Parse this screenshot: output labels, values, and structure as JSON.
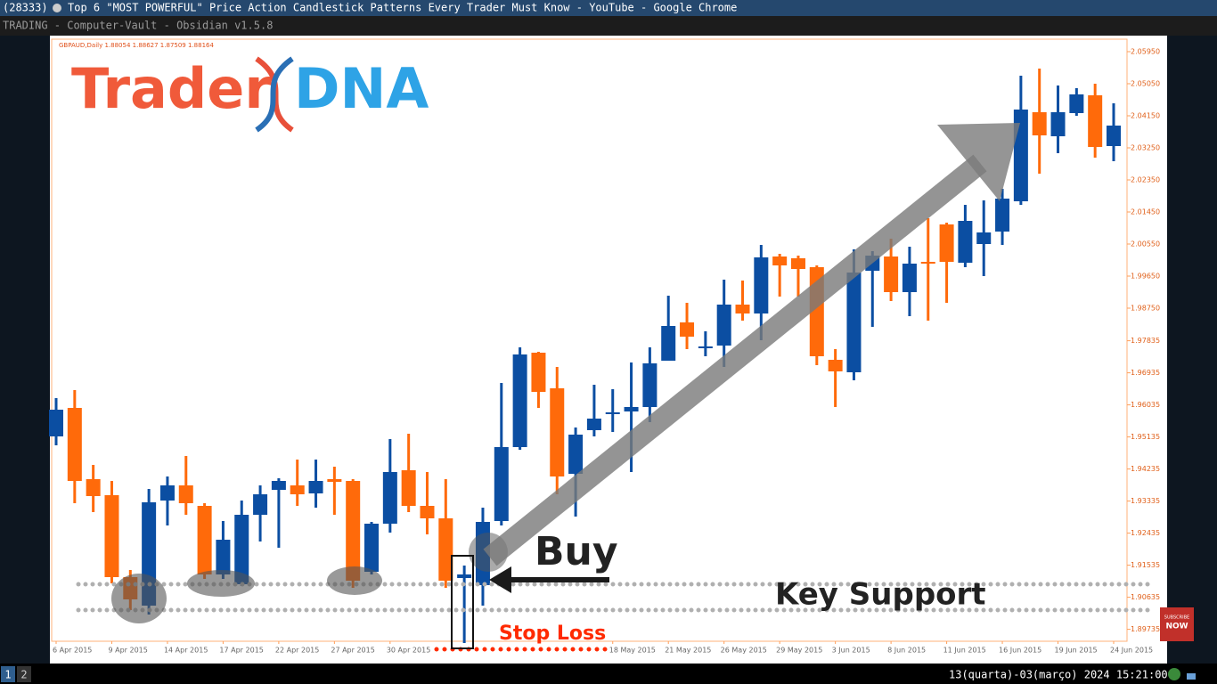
{
  "window": {
    "tab_count": "(28333)",
    "title": "Top 6 \"MOST POWERFUL\" Price Action Candlestick Patterns Every Trader Must Know - YouTube - Google Chrome",
    "app_bar": "TRADING - Computer-Vault - Obsidian v1.5.8"
  },
  "taskbar": {
    "workspaces": [
      "1",
      "2"
    ],
    "clock": "13(quarta)-03(março) 2024 15:21:00"
  },
  "video": {
    "logo": [
      "Trader",
      "DNA"
    ],
    "subscribe": [
      "SUBSCRIBE",
      "NOW"
    ],
    "annotations": {
      "buy": "Buy",
      "key_support": "Key Support",
      "stop_loss": "Stop Loss"
    }
  },
  "chart_data": {
    "type": "candlestick",
    "header": "GBPAUD,Daily  1.88054 1.88627 1.87509 1.88164",
    "categories": [
      "6 Apr 2015",
      null,
      null,
      "9 Apr 2015",
      null,
      null,
      "14 Apr 2015",
      null,
      null,
      "17 Apr 2015",
      null,
      null,
      "22 Apr 2015",
      null,
      null,
      "27 Apr 2015",
      null,
      null,
      "30 Apr 2015",
      null,
      null,
      null,
      null,
      null,
      null,
      null,
      null,
      null,
      null,
      null,
      "18 May 2015",
      null,
      null,
      "21 May 2015",
      null,
      null,
      "26 May 2015",
      null,
      null,
      "29 May 2015",
      null,
      null,
      "3 Jun 2015",
      null,
      null,
      "8 Jun 2015",
      null,
      null,
      "11 Jun 2015",
      null,
      null,
      "16 Jun 2015",
      null,
      null,
      "19 Jun 2015",
      null,
      null,
      "24 Jun 2015"
    ],
    "open": [
      1.9515,
      1.9595,
      1.9395,
      1.935,
      1.912,
      1.904,
      1.9335,
      1.93775,
      1.932,
      1.91275,
      1.91,
      1.9295,
      1.9365,
      1.93775,
      1.9355,
      1.9395,
      1.939,
      1.9135,
      1.927,
      1.942,
      1.932,
      1.9285,
      1.91175,
      1.90975,
      1.92775,
      1.9485,
      1.975,
      1.965,
      1.941,
      1.95325,
      1.95775,
      1.9585,
      1.95975,
      1.97275,
      1.9835,
      1.9765,
      1.977,
      1.9885,
      1.986,
      2.002,
      2.0015,
      1.999,
      1.973,
      1.9695,
      1.998,
      2.002,
      1.992,
      2.0005,
      2.011,
      2.00025,
      2.0055,
      2.009,
      2.0175,
      2.0425,
      2.03575,
      2.04225,
      2.04725,
      2.033
    ],
    "high": [
      1.96225,
      1.9645,
      1.9435,
      1.939,
      1.914,
      1.93675,
      1.94025,
      1.946,
      1.93275,
      1.92775,
      1.9335,
      1.93775,
      1.93975,
      1.945,
      1.945,
      1.943,
      1.9395,
      1.9275,
      1.95075,
      1.95225,
      1.9415,
      1.9395,
      1.91525,
      1.9315,
      1.9665,
      1.9765,
      1.97525,
      1.971,
      1.954,
      1.966,
      1.96475,
      1.97225,
      1.9765,
      1.991,
      1.989,
      1.981,
      1.9955,
      1.99525,
      2.00525,
      2.00275,
      2.00225,
      1.9995,
      1.976,
      2.004,
      2.0035,
      2.007,
      2.00475,
      2.01275,
      2.0115,
      2.0165,
      2.01775,
      2.021,
      2.05275,
      2.05475,
      2.05,
      2.04925,
      2.0505,
      2.045
    ],
    "low": [
      1.949,
      1.93275,
      1.93025,
      1.91025,
      1.90275,
      1.9015,
      1.9265,
      1.9295,
      1.9115,
      1.9115,
      1.9095,
      1.922,
      1.92025,
      1.932,
      1.9315,
      1.9295,
      1.909,
      1.91275,
      1.9245,
      1.93025,
      1.924,
      1.909,
      1.8935,
      1.904,
      1.9265,
      1.94775,
      1.9595,
      1.93525,
      1.929,
      1.9515,
      1.95275,
      1.9415,
      1.9555,
      1.97275,
      1.976,
      1.974,
      1.971,
      1.984,
      1.9785,
      1.99075,
      1.99075,
      1.9715,
      1.95975,
      1.96725,
      1.98225,
      1.9895,
      1.98525,
      1.984,
      1.989,
      1.999,
      1.9965,
      2.00525,
      2.0165,
      2.02525,
      2.031,
      2.0415,
      2.02975,
      2.02875
    ],
    "close": [
      1.959,
      1.939,
      1.93475,
      1.912,
      1.90575,
      1.933,
      1.93775,
      1.93275,
      1.91275,
      1.9225,
      1.9295,
      1.93525,
      1.939,
      1.93525,
      1.939,
      1.93875,
      1.911,
      1.927,
      1.9415,
      1.932,
      1.9285,
      1.911,
      1.91275,
      1.9275,
      1.9485,
      1.9745,
      1.964,
      1.94025,
      1.952,
      1.9565,
      1.95825,
      1.95975,
      1.972,
      1.9825,
      1.9795,
      1.97675,
      1.9885,
      1.986,
      2.00175,
      1.9995,
      1.9985,
      1.974,
      1.96975,
      1.9975,
      2.00225,
      1.992,
      2.0,
      2.0003,
      2.0005,
      2.012,
      2.00875,
      2.01825,
      2.04325,
      2.036,
      2.0425,
      2.0475,
      2.03275,
      2.03875
    ],
    "up_color": "#0b4ea2",
    "down_color": "#ff6a0a",
    "ylim": [
      1.894,
      2.063
    ],
    "yticks": [
      {
        "value": 2.0595,
        "label": "2.05950"
      },
      {
        "value": 2.0505,
        "label": "2.05050"
      },
      {
        "value": 2.0415,
        "label": "2.04150"
      },
      {
        "value": 2.0325,
        "label": "2.03250"
      },
      {
        "value": 2.0235,
        "label": "2.02350"
      },
      {
        "value": 2.0145,
        "label": "2.01450"
      },
      {
        "value": 2.0055,
        "label": "2.00550"
      },
      {
        "value": 1.9965,
        "label": "1.99650"
      },
      {
        "value": 1.9875,
        "label": "1.98750"
      },
      1.97835,
      1.96935,
      1.96035,
      1.95135,
      1.94235,
      1.93335,
      1.92435,
      1.91535,
      1.90635,
      1.89735
    ],
    "grid": false
  }
}
